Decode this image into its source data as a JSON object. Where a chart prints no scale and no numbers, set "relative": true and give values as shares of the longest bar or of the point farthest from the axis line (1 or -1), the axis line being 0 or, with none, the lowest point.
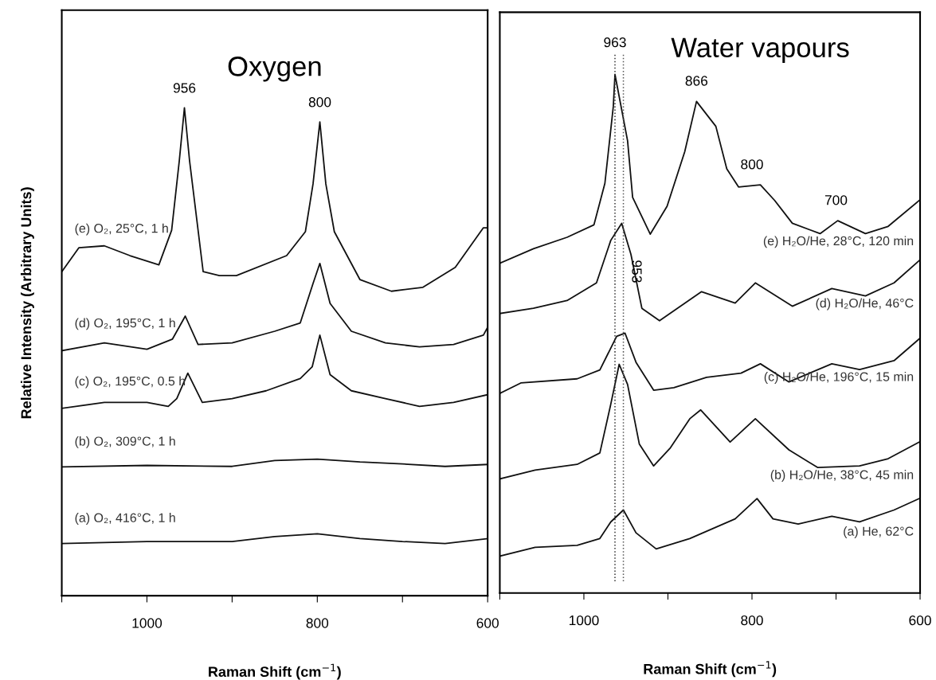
{
  "chart_data": [
    {
      "type": "line",
      "title": "Oxygen",
      "xlabel": "Raman Shift (cm$^{−1}$)",
      "ylabel": "Relative Intensity (Arbitrary Units)",
      "relative": true,
      "xlim": [
        1100,
        600
      ],
      "xticks": [
        {
          "value": 1100,
          "label": null
        },
        1000,
        {
          "value": 900,
          "label": null
        },
        800,
        {
          "value": 700,
          "label": null
        },
        600
      ],
      "grid": false,
      "legend": false,
      "marker": "none",
      "line_style": "solid",
      "series": [
        {
          "name": "(e) O₂, 25°C, 1 h",
          "color": "#111111",
          "x": [
            1100,
            1080,
            1050,
            1020,
            986,
            971,
            962,
            956,
            950,
            934,
            915,
            895,
            836,
            814,
            805,
            797,
            790,
            780,
            750,
            713,
            676,
            638,
            605,
            600
          ],
          "values": [
            0.664,
            0.713,
            0.717,
            0.697,
            0.678,
            0.749,
            0.892,
            1.0,
            0.892,
            0.664,
            0.656,
            0.656,
            0.697,
            0.746,
            0.844,
            0.971,
            0.844,
            0.746,
            0.648,
            0.624,
            0.632,
            0.673,
            0.754,
            0.754
          ]
        },
        {
          "name": "(d) O₂, 195°C, 1 h",
          "color": "#111111",
          "x": [
            1100,
            1050,
            1000,
            970,
            955,
            940,
            900,
            850,
            820,
            805,
            797,
            785,
            760,
            720,
            680,
            640,
            605,
            600
          ],
          "values": [
            0.502,
            0.518,
            0.505,
            0.526,
            0.573,
            0.515,
            0.518,
            0.542,
            0.559,
            0.64,
            0.681,
            0.599,
            0.542,
            0.518,
            0.51,
            0.515,
            0.534,
            0.55
          ]
        },
        {
          "name": "(c) O₂, 195°C, 0.5 h",
          "color": "#111111",
          "x": [
            1100,
            1050,
            1000,
            975,
            965,
            952,
            935,
            900,
            860,
            820,
            806,
            797,
            785,
            760,
            720,
            680,
            640,
            600
          ],
          "values": [
            0.384,
            0.396,
            0.396,
            0.388,
            0.404,
            0.456,
            0.396,
            0.404,
            0.42,
            0.445,
            0.469,
            0.534,
            0.453,
            0.42,
            0.404,
            0.388,
            0.396,
            0.412
          ]
        },
        {
          "name": "(b) O₂, 309°C, 1 h",
          "color": "#111111",
          "x": [
            1100,
            1000,
            900,
            850,
            800,
            750,
            700,
            650,
            600
          ],
          "values": [
            0.264,
            0.267,
            0.265,
            0.277,
            0.28,
            0.274,
            0.27,
            0.265,
            0.269
          ]
        },
        {
          "name": "(a) O₂, 416°C, 1 h",
          "color": "#111111",
          "x": [
            1100,
            1000,
            900,
            850,
            800,
            750,
            700,
            650,
            600
          ],
          "values": [
            0.107,
            0.111,
            0.111,
            0.121,
            0.127,
            0.117,
            0.111,
            0.107,
            0.117
          ]
        }
      ],
      "annotations": [
        {
          "text": "956",
          "x": 956,
          "y": 1.0
        },
        {
          "text": "800",
          "x": 797,
          "y": 0.971
        }
      ]
    },
    {
      "type": "line",
      "title": "Water vapours",
      "xlabel": "Raman Shift (cm$^{−1}$)",
      "relative": true,
      "xlim": [
        1100,
        600
      ],
      "xticks": [
        {
          "value": 1100,
          "label": null
        },
        1000,
        {
          "value": 900,
          "label": null
        },
        800,
        {
          "value": 700,
          "label": null
        },
        600
      ],
      "grid": false,
      "legend": false,
      "marker": "none",
      "line_style": "solid",
      "series": [
        {
          "name": "(e) H₂O/He, 28°C, 120 min",
          "color": "#111111",
          "x": [
            1100,
            1060,
            1020,
            988,
            975,
            965,
            963,
            948,
            942,
            921,
            901,
            880,
            866,
            843,
            830,
            816,
            790,
            773,
            752,
            719,
            698,
            665,
            638,
            601
          ],
          "values": [
            0.636,
            0.664,
            0.686,
            0.71,
            0.79,
            0.938,
            1.0,
            0.872,
            0.763,
            0.692,
            0.746,
            0.851,
            0.948,
            0.9,
            0.818,
            0.783,
            0.787,
            0.757,
            0.713,
            0.693,
            0.718,
            0.693,
            0.707,
            0.757
          ]
        },
        {
          "name": "(d) H₂O/He, 46°C",
          "color": "#111111",
          "x": [
            1100,
            1060,
            1020,
            985,
            968,
            955,
            944,
            931,
            910,
            860,
            820,
            796,
            752,
            705,
            665,
            631,
            601
          ],
          "values": [
            0.539,
            0.549,
            0.564,
            0.598,
            0.68,
            0.713,
            0.653,
            0.549,
            0.525,
            0.581,
            0.559,
            0.598,
            0.553,
            0.587,
            0.573,
            0.598,
            0.641
          ]
        },
        {
          "name": "(c) H₂O/He, 196°C, 15 min",
          "color": "#111111",
          "x": [
            1100,
            1075,
            1008,
            981,
            961,
            951,
            938,
            917,
            893,
            854,
            813,
            790,
            756,
            705,
            672,
            631,
            601
          ],
          "values": [
            0.385,
            0.405,
            0.413,
            0.43,
            0.495,
            0.501,
            0.445,
            0.391,
            0.396,
            0.416,
            0.424,
            0.442,
            0.407,
            0.442,
            0.431,
            0.448,
            0.49
          ]
        },
        {
          "name": "(b) H₂O/He, 38°C, 45 min",
          "color": "#111111",
          "x": [
            1100,
            1058,
            1008,
            981,
            968,
            958,
            948,
            934,
            917,
            897,
            874,
            861,
            826,
            796,
            756,
            722,
            672,
            638,
            601
          ],
          "values": [
            0.22,
            0.237,
            0.248,
            0.27,
            0.364,
            0.441,
            0.402,
            0.287,
            0.245,
            0.28,
            0.336,
            0.353,
            0.291,
            0.336,
            0.276,
            0.242,
            0.245,
            0.259,
            0.291
          ]
        },
        {
          "name": "(a) He, 62°C",
          "color": "#111111",
          "x": [
            1100,
            1058,
            1008,
            981,
            968,
            953,
            938,
            914,
            874,
            820,
            794,
            775,
            745,
            705,
            672,
            631,
            601
          ],
          "values": [
            0.071,
            0.088,
            0.092,
            0.105,
            0.137,
            0.16,
            0.116,
            0.085,
            0.105,
            0.143,
            0.182,
            0.143,
            0.133,
            0.148,
            0.137,
            0.16,
            0.182
          ]
        }
      ],
      "ref_lines": [
        {
          "axis": "x",
          "value": 963,
          "label": "963",
          "color": "#333333",
          "line_style": "dotted"
        },
        {
          "axis": "x",
          "value": 953,
          "label": "953",
          "color": "#555555",
          "line_style": "dotted"
        }
      ],
      "annotations": [
        {
          "text": "866",
          "x": 866,
          "y": 0.948
        },
        {
          "text": "800",
          "x": 800,
          "y": 0.787
        },
        {
          "text": "700",
          "x": 700,
          "y": 0.718
        }
      ]
    }
  ]
}
